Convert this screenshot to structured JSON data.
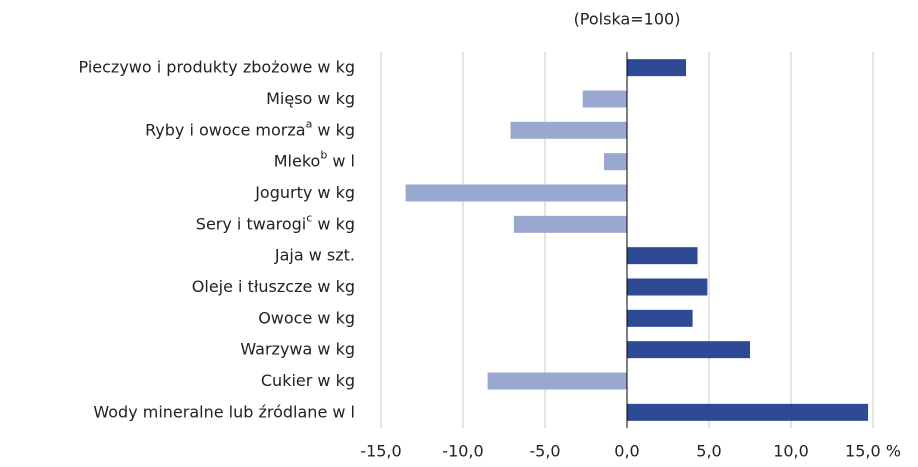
{
  "chart_data": {
    "type": "hbar",
    "subtitle": "(Polska=100)",
    "categories": [
      [
        "Pieczywo i produkty zbożowe w kg"
      ],
      [
        "Mięso w kg"
      ],
      [
        "Ryby i owoce morza",
        {
          "sup": "a"
        },
        " w kg"
      ],
      [
        "Mleko",
        {
          "sup": "b"
        },
        " w l"
      ],
      [
        "Jogurty w kg"
      ],
      [
        "Sery i twarogi",
        {
          "sup": "c"
        },
        " w kg"
      ],
      [
        "Jaja w szt."
      ],
      [
        "Oleje i tłuszcze w kg"
      ],
      [
        "Owoce w kg"
      ],
      [
        "Warzywa w kg"
      ],
      [
        "Cukier w kg"
      ],
      [
        "Wody mineralne lub źródlane w l"
      ]
    ],
    "values": [
      3.6,
      -2.7,
      -7.1,
      -1.4,
      -13.5,
      -6.9,
      4.3,
      4.9,
      4.0,
      7.5,
      -8.5,
      14.7
    ],
    "color_positive": "#2e4a94",
    "color_negative": "#9aa8d0",
    "xlim": [
      -15,
      15
    ],
    "xticks": [
      {
        "value": -15,
        "label": "-15,0"
      },
      {
        "value": -10,
        "label": "-10,0"
      },
      {
        "value": -5,
        "label": "-5,0"
      },
      {
        "value": 0,
        "label": "0,0"
      },
      {
        "value": 5,
        "label": "5,0"
      },
      {
        "value": 10,
        "label": "10,0"
      },
      {
        "value": 15,
        "label": "15,0 %"
      }
    ],
    "grid": true
  }
}
